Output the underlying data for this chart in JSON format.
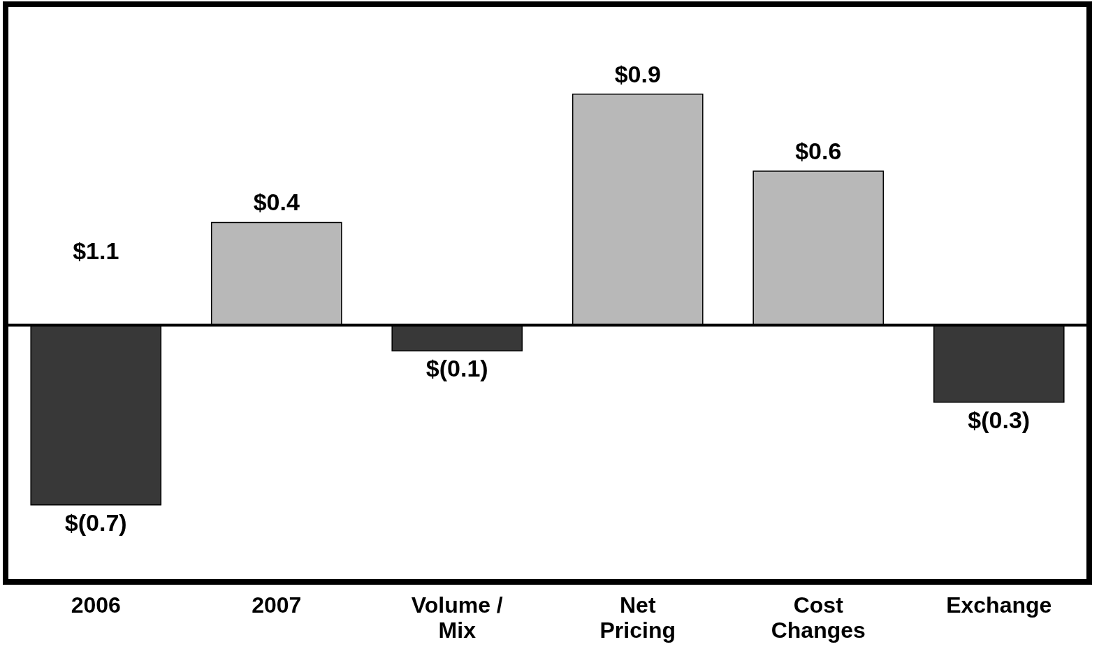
{
  "chart_data": {
    "type": "bar",
    "categories": [
      "2006",
      "2007",
      "Volume / Mix",
      "Net Pricing",
      "Cost Changes",
      "Exchange"
    ],
    "values": [
      -0.7,
      0.4,
      -0.1,
      0.9,
      0.6,
      -0.3
    ],
    "colors": [
      "#383838",
      "#b8b8b8",
      "#383838",
      "#b8b8b8",
      "#b8b8b8",
      "#383838"
    ],
    "value_labels": [
      "$(0.7)",
      "$0.4",
      "$(0.1)",
      "$0.9",
      "$0.6",
      "$(0.3)"
    ],
    "ylim": [
      -1,
      1.25
    ],
    "annotations": [
      "$1.1"
    ]
  }
}
